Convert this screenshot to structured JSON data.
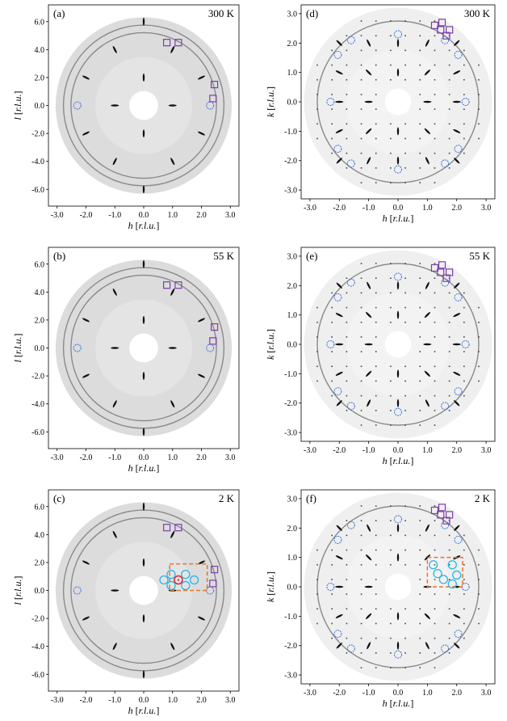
{
  "figure": {
    "panels": [
      {
        "id": "a",
        "label": "(a)",
        "temperature": "300 K",
        "type": "hl",
        "x_label": "h",
        "y_label": "l",
        "unit": "[r.l.u.]",
        "inset": false
      },
      {
        "id": "d",
        "label": "(d)",
        "temperature": "300 K",
        "type": "hk",
        "x_label": "h",
        "y_label": "k",
        "unit": "[r.l.u.]",
        "inset": false
      },
      {
        "id": "b",
        "label": "(b)",
        "temperature": "55 K",
        "type": "hl",
        "x_label": "h",
        "y_label": "l",
        "unit": "[r.l.u.]",
        "inset": false
      },
      {
        "id": "e",
        "label": "(e)",
        "temperature": "55 K",
        "type": "hk",
        "x_label": "h",
        "y_label": "k",
        "unit": "[r.l.u.]",
        "inset": false
      },
      {
        "id": "c",
        "label": "(c)",
        "temperature": "2 K",
        "type": "hl",
        "x_label": "h",
        "y_label": "l",
        "unit": "[r.l.u.]",
        "inset": true
      },
      {
        "id": "f",
        "label": "(f)",
        "temperature": "2 K",
        "type": "hk",
        "x_label": "h",
        "y_label": "k",
        "unit": "[r.l.u.]",
        "inset": true
      }
    ],
    "hl_axes": {
      "x_ticks": [
        "-3.0",
        "-2.0",
        "-1.0",
        "0.0",
        "1.0",
        "2.0",
        "3.0"
      ],
      "y_ticks": [
        "-6.0",
        "-4.0",
        "-2.0",
        "0.0",
        "2.0",
        "4.0",
        "6.0"
      ],
      "x_range": [
        -3.3,
        3.3
      ],
      "y_range": [
        -7.2,
        7.2
      ]
    },
    "hk_axes": {
      "x_ticks": [
        "-3.0",
        "-2.0",
        "-1.0",
        "0.0",
        "1.0",
        "2.0",
        "3.0"
      ],
      "y_ticks": [
        "-3.0",
        "-2.0",
        "-1.0",
        "0.0",
        "1.0",
        "2.0",
        "3.0"
      ],
      "x_range": [
        -3.3,
        3.3
      ],
      "y_range": [
        -3.3,
        3.3
      ]
    },
    "hl_features": {
      "detector_radius": 3.05,
      "hole_radius": 0.5,
      "rings": [
        2.52,
        2.78
      ],
      "bragg_peaks": [
        [
          -2,
          6
        ],
        [
          0,
          6
        ],
        [
          2,
          6
        ],
        [
          -1,
          4
        ],
        [
          1,
          4
        ],
        [
          -2,
          2
        ],
        [
          0,
          2
        ],
        [
          2,
          2
        ],
        [
          -1,
          0
        ],
        [
          1,
          0
        ],
        [
          -3,
          0
        ],
        [
          3,
          0
        ],
        [
          -2,
          -2
        ],
        [
          0,
          -2
        ],
        [
          2,
          -2
        ],
        [
          -1,
          -4
        ],
        [
          1,
          -4
        ],
        [
          -2,
          -6
        ],
        [
          0,
          -6
        ],
        [
          2,
          -6
        ],
        [
          -3,
          4
        ],
        [
          3,
          4
        ],
        [
          -3,
          -4
        ],
        [
          3,
          -4
        ]
      ],
      "blue_circles": [
        [
          -2.3,
          0
        ],
        [
          2.3,
          0
        ]
      ],
      "purple_squares": [
        [
          0.8,
          4.5
        ],
        [
          1.2,
          4.5
        ],
        [
          2.45,
          1.5
        ],
        [
          2.4,
          0.5
        ]
      ],
      "inset_box": {
        "h": [
          0.9,
          2.2
        ],
        "l": [
          0.0,
          1.9
        ]
      },
      "inset_cyan_circles": [
        [
          0.95,
          1.15
        ],
        [
          1.45,
          1.15
        ],
        [
          1.75,
          0.75
        ],
        [
          1.45,
          0.35
        ],
        [
          0.95,
          0.35
        ],
        [
          0.7,
          0.75
        ]
      ],
      "inset_red_circle": [
        1.2,
        0.75
      ]
    },
    "hk_features": {
      "detector_radius": 3.2,
      "hole_radius": 0.45,
      "ring": 2.75,
      "bragg_peaks": [
        [
          -2,
          2
        ],
        [
          -1,
          2
        ],
        [
          0,
          2
        ],
        [
          1,
          2
        ],
        [
          2,
          2
        ],
        [
          -2,
          1
        ],
        [
          2,
          1
        ],
        [
          -2,
          0
        ],
        [
          2,
          0
        ],
        [
          -2,
          -1
        ],
        [
          2,
          -1
        ],
        [
          -2,
          -2
        ],
        [
          -1,
          -2
        ],
        [
          0,
          -2
        ],
        [
          1,
          -2
        ],
        [
          2,
          -2
        ],
        [
          -1,
          1
        ],
        [
          1,
          1
        ],
        [
          -1,
          -1
        ],
        [
          1,
          -1
        ],
        [
          0,
          1
        ],
        [
          0,
          -1
        ],
        [
          1,
          0
        ],
        [
          -1,
          0
        ]
      ],
      "blue_circles": [
        [
          -1.6,
          2.1
        ],
        [
          0,
          2.3
        ],
        [
          1.6,
          2.1
        ],
        [
          2.05,
          1.6
        ],
        [
          -2.05,
          1.6
        ],
        [
          2.3,
          0
        ],
        [
          -2.3,
          0
        ],
        [
          2.05,
          -1.6
        ],
        [
          -2.05,
          -1.6
        ],
        [
          1.6,
          -2.1
        ],
        [
          0,
          -2.3
        ],
        [
          -1.6,
          -2.1
        ]
      ],
      "purple_squares": [
        [
          1.25,
          2.6
        ],
        [
          1.5,
          2.7
        ],
        [
          1.45,
          2.45
        ],
        [
          1.75,
          2.45
        ],
        [
          1.65,
          2.25
        ]
      ],
      "inset_box": {
        "h": [
          1.0,
          2.2
        ],
        "k": [
          0.0,
          1.0
        ]
      },
      "inset_cyan_circles": [
        [
          1.2,
          0.75
        ],
        [
          1.35,
          0.45
        ],
        [
          1.55,
          0.25
        ],
        [
          1.85,
          0.75
        ],
        [
          2.0,
          0.4
        ],
        [
          1.85,
          0.1
        ]
      ]
    }
  }
}
